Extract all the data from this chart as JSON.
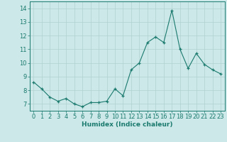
{
  "x": [
    0,
    1,
    2,
    3,
    4,
    5,
    6,
    7,
    8,
    9,
    10,
    11,
    12,
    13,
    14,
    15,
    16,
    17,
    18,
    19,
    20,
    21,
    22,
    23
  ],
  "y": [
    8.6,
    8.1,
    7.5,
    7.2,
    7.4,
    7.0,
    6.8,
    7.1,
    7.1,
    7.2,
    8.1,
    7.6,
    9.5,
    10.0,
    11.5,
    11.9,
    11.5,
    13.85,
    11.0,
    9.6,
    10.7,
    9.9,
    9.5,
    9.2
  ],
  "line_color": "#1a7a6e",
  "marker_color": "#1a7a6e",
  "bg_color": "#cce8e8",
  "grid_color": "#b0d0d0",
  "xlabel": "Humidex (Indice chaleur)",
  "ylim": [
    6.5,
    14.5
  ],
  "xlim": [
    -0.5,
    23.5
  ],
  "yticks": [
    7,
    8,
    9,
    10,
    11,
    12,
    13,
    14
  ],
  "xticks": [
    0,
    1,
    2,
    3,
    4,
    5,
    6,
    7,
    8,
    9,
    10,
    11,
    12,
    13,
    14,
    15,
    16,
    17,
    18,
    19,
    20,
    21,
    22,
    23
  ],
  "label_fontsize": 6.5,
  "tick_fontsize": 6.0
}
